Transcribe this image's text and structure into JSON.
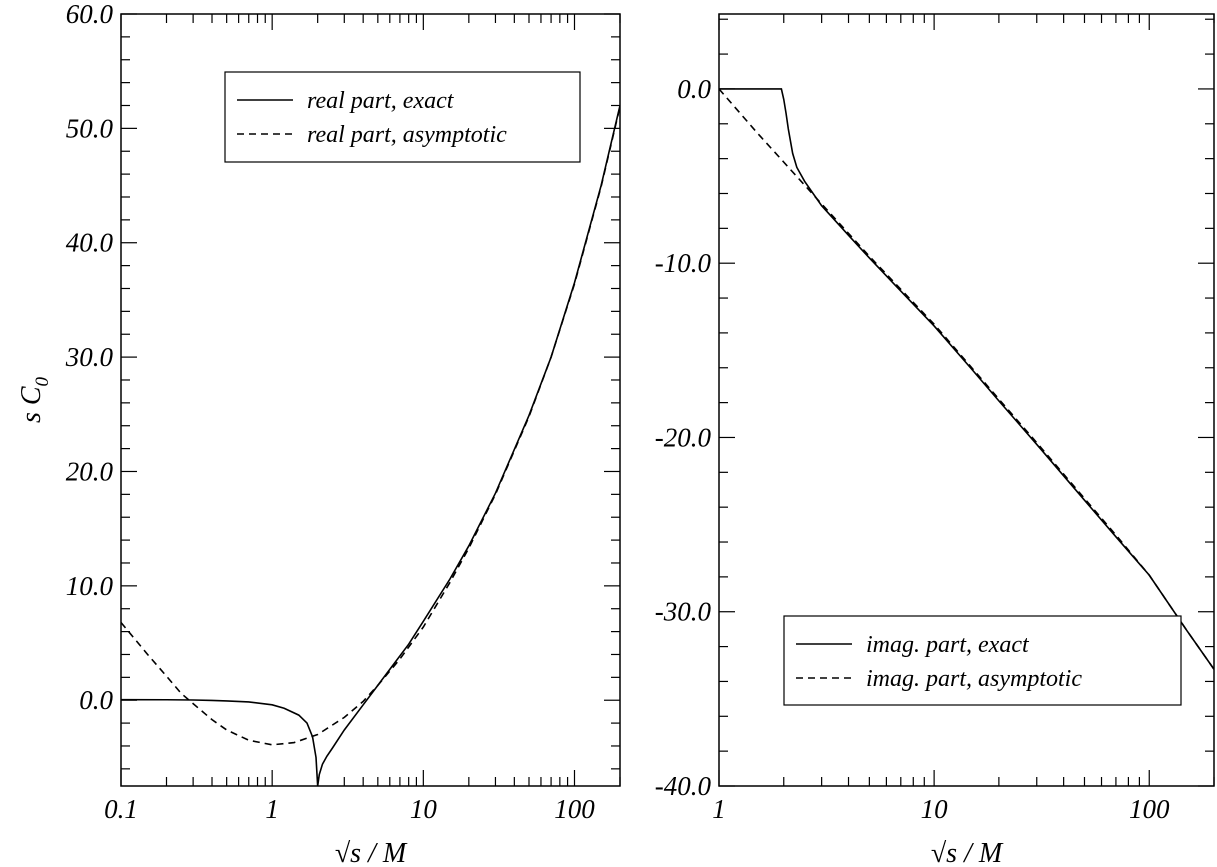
{
  "chart_data": [
    {
      "type": "line",
      "x_scale": "log",
      "xlim": [
        0.1,
        200
      ],
      "ylim": [
        -7.5,
        60
      ],
      "xlabel": "√s / M",
      "ylabel": "s C",
      "ylabel_sub": "0",
      "x_ticks": [
        0.1,
        1,
        10,
        100
      ],
      "x_tick_labels": [
        "0.1",
        "1",
        "10",
        "100"
      ],
      "y_ticks": [
        0,
        10,
        20,
        30,
        40,
        50,
        60
      ],
      "y_tick_labels": [
        "0.0",
        "10.0",
        "20.0",
        "30.0",
        "40.0",
        "50.0",
        "60.0"
      ],
      "legend_position": "top-right",
      "series": [
        {
          "name": "real part, exact",
          "style": "solid",
          "points": [
            [
              0.1,
              0.05
            ],
            [
              0.2,
              0.04
            ],
            [
              0.3,
              0.02
            ],
            [
              0.4,
              -0.02
            ],
            [
              0.5,
              -0.06
            ],
            [
              0.7,
              -0.15
            ],
            [
              1.0,
              -0.4
            ],
            [
              1.2,
              -0.7
            ],
            [
              1.5,
              -1.3
            ],
            [
              1.7,
              -2.0
            ],
            [
              1.85,
              -3.2
            ],
            [
              1.95,
              -5.0
            ],
            [
              2.0,
              -7.5
            ],
            [
              2.05,
              -6.5
            ],
            [
              2.15,
              -5.6
            ],
            [
              2.3,
              -4.9
            ],
            [
              2.5,
              -4.2
            ],
            [
              3.0,
              -2.6
            ],
            [
              4.0,
              -0.4
            ],
            [
              5.0,
              1.3
            ],
            [
              6.0,
              2.7
            ],
            [
              8.0,
              4.9
            ],
            [
              10.0,
              6.9
            ],
            [
              15.0,
              10.6
            ],
            [
              20.0,
              13.5
            ],
            [
              30.0,
              18.1
            ],
            [
              50.0,
              24.9
            ],
            [
              70.0,
              30.0
            ],
            [
              100.0,
              36.5
            ],
            [
              150.0,
              45.0
            ],
            [
              200.0,
              52.0
            ]
          ]
        },
        {
          "name": "real part, asymptotic",
          "style": "dashed",
          "points": [
            [
              0.1,
              6.8
            ],
            [
              0.15,
              4.0
            ],
            [
              0.2,
              2.1
            ],
            [
              0.25,
              0.6
            ],
            [
              0.3,
              -0.3
            ],
            [
              0.4,
              -1.7
            ],
            [
              0.5,
              -2.6
            ],
            [
              0.7,
              -3.5
            ],
            [
              1.0,
              -3.9
            ],
            [
              1.4,
              -3.7
            ],
            [
              2.0,
              -3.0
            ],
            [
              3.0,
              -1.5
            ],
            [
              4.0,
              -0.1
            ],
            [
              5.0,
              1.3
            ],
            [
              7.0,
              3.6
            ],
            [
              10.0,
              6.4
            ],
            [
              15.0,
              10.3
            ],
            [
              20.0,
              13.3
            ],
            [
              30.0,
              18.0
            ],
            [
              50.0,
              24.8
            ],
            [
              70.0,
              30.0
            ],
            [
              100.0,
              36.4
            ],
            [
              150.0,
              44.9
            ],
            [
              200.0,
              51.9
            ]
          ]
        }
      ]
    },
    {
      "type": "line",
      "x_scale": "log",
      "xlim": [
        1,
        200
      ],
      "ylim": [
        -40,
        4.3
      ],
      "xlabel": "√s / M",
      "x_ticks": [
        1,
        10,
        100
      ],
      "x_tick_labels": [
        "1",
        "10",
        "100"
      ],
      "y_ticks": [
        0,
        -10,
        -20,
        -30,
        -40
      ],
      "y_tick_labels": [
        "0.0",
        "-10.0",
        "-20.0",
        "-30.0",
        "-40.0"
      ],
      "legend_position": "bottom-right",
      "series": [
        {
          "name": "imag. part, exact",
          "style": "solid",
          "points": [
            [
              1.0,
              0
            ],
            [
              1.5,
              0
            ],
            [
              1.95,
              0
            ],
            [
              2.0,
              -0.6
            ],
            [
              2.05,
              -1.4
            ],
            [
              2.1,
              -2.3
            ],
            [
              2.2,
              -3.7
            ],
            [
              2.3,
              -4.5
            ],
            [
              2.5,
              -5.3
            ],
            [
              3.0,
              -6.7
            ],
            [
              4.0,
              -8.4
            ],
            [
              5.0,
              -9.7
            ],
            [
              7.0,
              -11.6
            ],
            [
              10.0,
              -13.6
            ],
            [
              15.0,
              -16.1
            ],
            [
              20.0,
              -17.9
            ],
            [
              30.0,
              -20.4
            ],
            [
              50.0,
              -23.6
            ],
            [
              70.0,
              -25.7
            ],
            [
              100.0,
              -27.9
            ],
            [
              150.0,
              -31.1
            ],
            [
              200.0,
              -33.3
            ]
          ]
        },
        {
          "name": "imag. part, asymptotic",
          "style": "dashed",
          "points": [
            [
              1.0,
              0
            ],
            [
              1.5,
              -2.5
            ],
            [
              2.0,
              -4.2
            ],
            [
              3.0,
              -6.6
            ],
            [
              5.0,
              -9.6
            ],
            [
              7.0,
              -11.5
            ],
            [
              10.0,
              -13.5
            ],
            [
              20.0,
              -17.8
            ],
            [
              30.0,
              -20.3
            ],
            [
              50.0,
              -23.5
            ],
            [
              70.0,
              -25.6
            ],
            [
              100.0,
              -27.9
            ],
            [
              150.0,
              -31.1
            ],
            [
              200.0,
              -33.3
            ]
          ]
        }
      ]
    }
  ]
}
